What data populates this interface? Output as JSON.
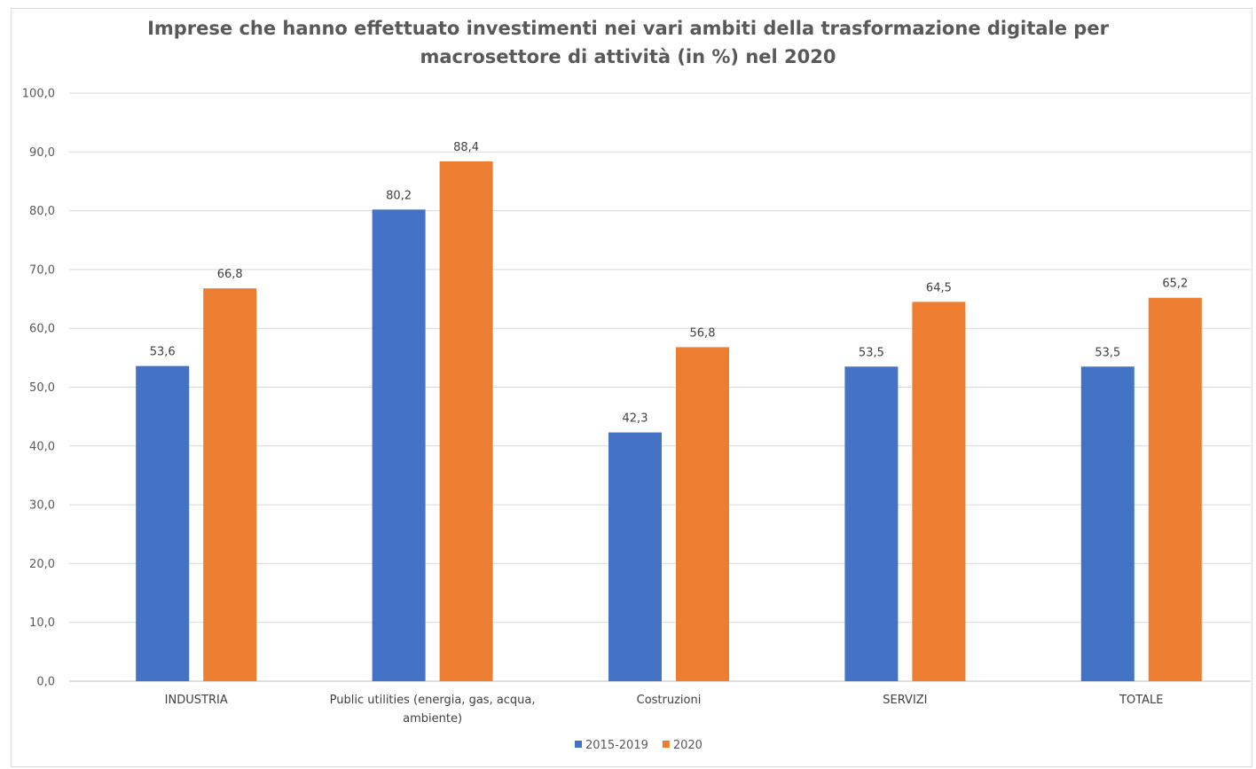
{
  "chart_data": {
    "type": "bar",
    "title_lines": [
      "Imprese che hanno effettuato investimenti nei vari ambiti della trasformazione digitale per",
      "macrosettore di attività (in %) nel 2020"
    ],
    "categories": [
      [
        "INDUSTRIA"
      ],
      [
        "Public utilities (energia, gas, acqua,",
        "ambiente)"
      ],
      [
        "Costruzioni"
      ],
      [
        "SERVIZI"
      ],
      [
        "TOTALE"
      ]
    ],
    "series": [
      {
        "name": "2015-2019",
        "color": "#4472c4",
        "values": [
          53.6,
          80.2,
          42.3,
          53.5,
          53.5
        ]
      },
      {
        "name": "2020",
        "color": "#ed7d31",
        "values": [
          66.8,
          88.4,
          56.8,
          64.5,
          65.2
        ]
      }
    ],
    "ylim": [
      0,
      100
    ],
    "ytick_step": 10,
    "grid": true,
    "legend_position": "bottom",
    "data_labels": true
  }
}
